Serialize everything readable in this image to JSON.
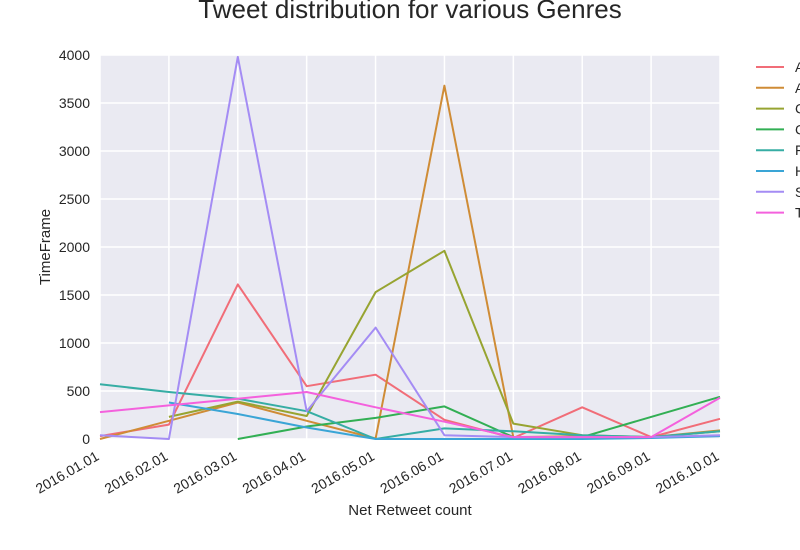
{
  "chart_data": {
    "type": "line",
    "title": "Tweet distribution for various Genres",
    "xlabel": "Net Retweet count",
    "ylabel": "TimeFrame",
    "categories": [
      "2016.01.01",
      "2016.02.01",
      "2016.03.01",
      "2016.04.01",
      "2016.05.01",
      "2016.06.01",
      "2016.07.01",
      "2016.08.01",
      "2016.09.01",
      "2016.10.01"
    ],
    "ylim": [
      0,
      4000
    ],
    "yticks": [
      "0",
      "500",
      "1000",
      "1500",
      "2000",
      "2500",
      "3000",
      "3500",
      "4000"
    ],
    "grid": true,
    "legend_position": "right",
    "series": [
      {
        "name": "A",
        "color": "#f16d78",
        "values": [
          30,
          150,
          1610,
          550,
          670,
          200,
          10,
          330,
          20,
          210
        ]
      },
      {
        "name": "A",
        "color": "#cf8c36",
        "values": [
          0,
          190,
          380,
          190,
          5,
          3680,
          20,
          30,
          20,
          90
        ]
      },
      {
        "name": "C",
        "color": "#97a431",
        "values": [
          null,
          230,
          390,
          240,
          1530,
          1960,
          160,
          40,
          20,
          80
        ]
      },
      {
        "name": "C",
        "color": "#32af54",
        "values": [
          null,
          null,
          0,
          130,
          220,
          340,
          20,
          20,
          230,
          440
        ]
      },
      {
        "name": "F",
        "color": "#36ada4",
        "values": [
          570,
          490,
          420,
          290,
          0,
          110,
          80,
          40,
          20,
          80
        ]
      },
      {
        "name": "H",
        "color": "#3aa5d6",
        "values": [
          null,
          380,
          260,
          120,
          0,
          0,
          0,
          0,
          10,
          30
        ]
      },
      {
        "name": "S",
        "color": "#a48cf4",
        "values": [
          40,
          0,
          3980,
          290,
          1160,
          40,
          20,
          20,
          20,
          40
        ]
      },
      {
        "name": "T",
        "color": "#f461dd",
        "values": [
          280,
          350,
          420,
          490,
          330,
          180,
          20,
          20,
          20,
          430
        ]
      }
    ]
  }
}
